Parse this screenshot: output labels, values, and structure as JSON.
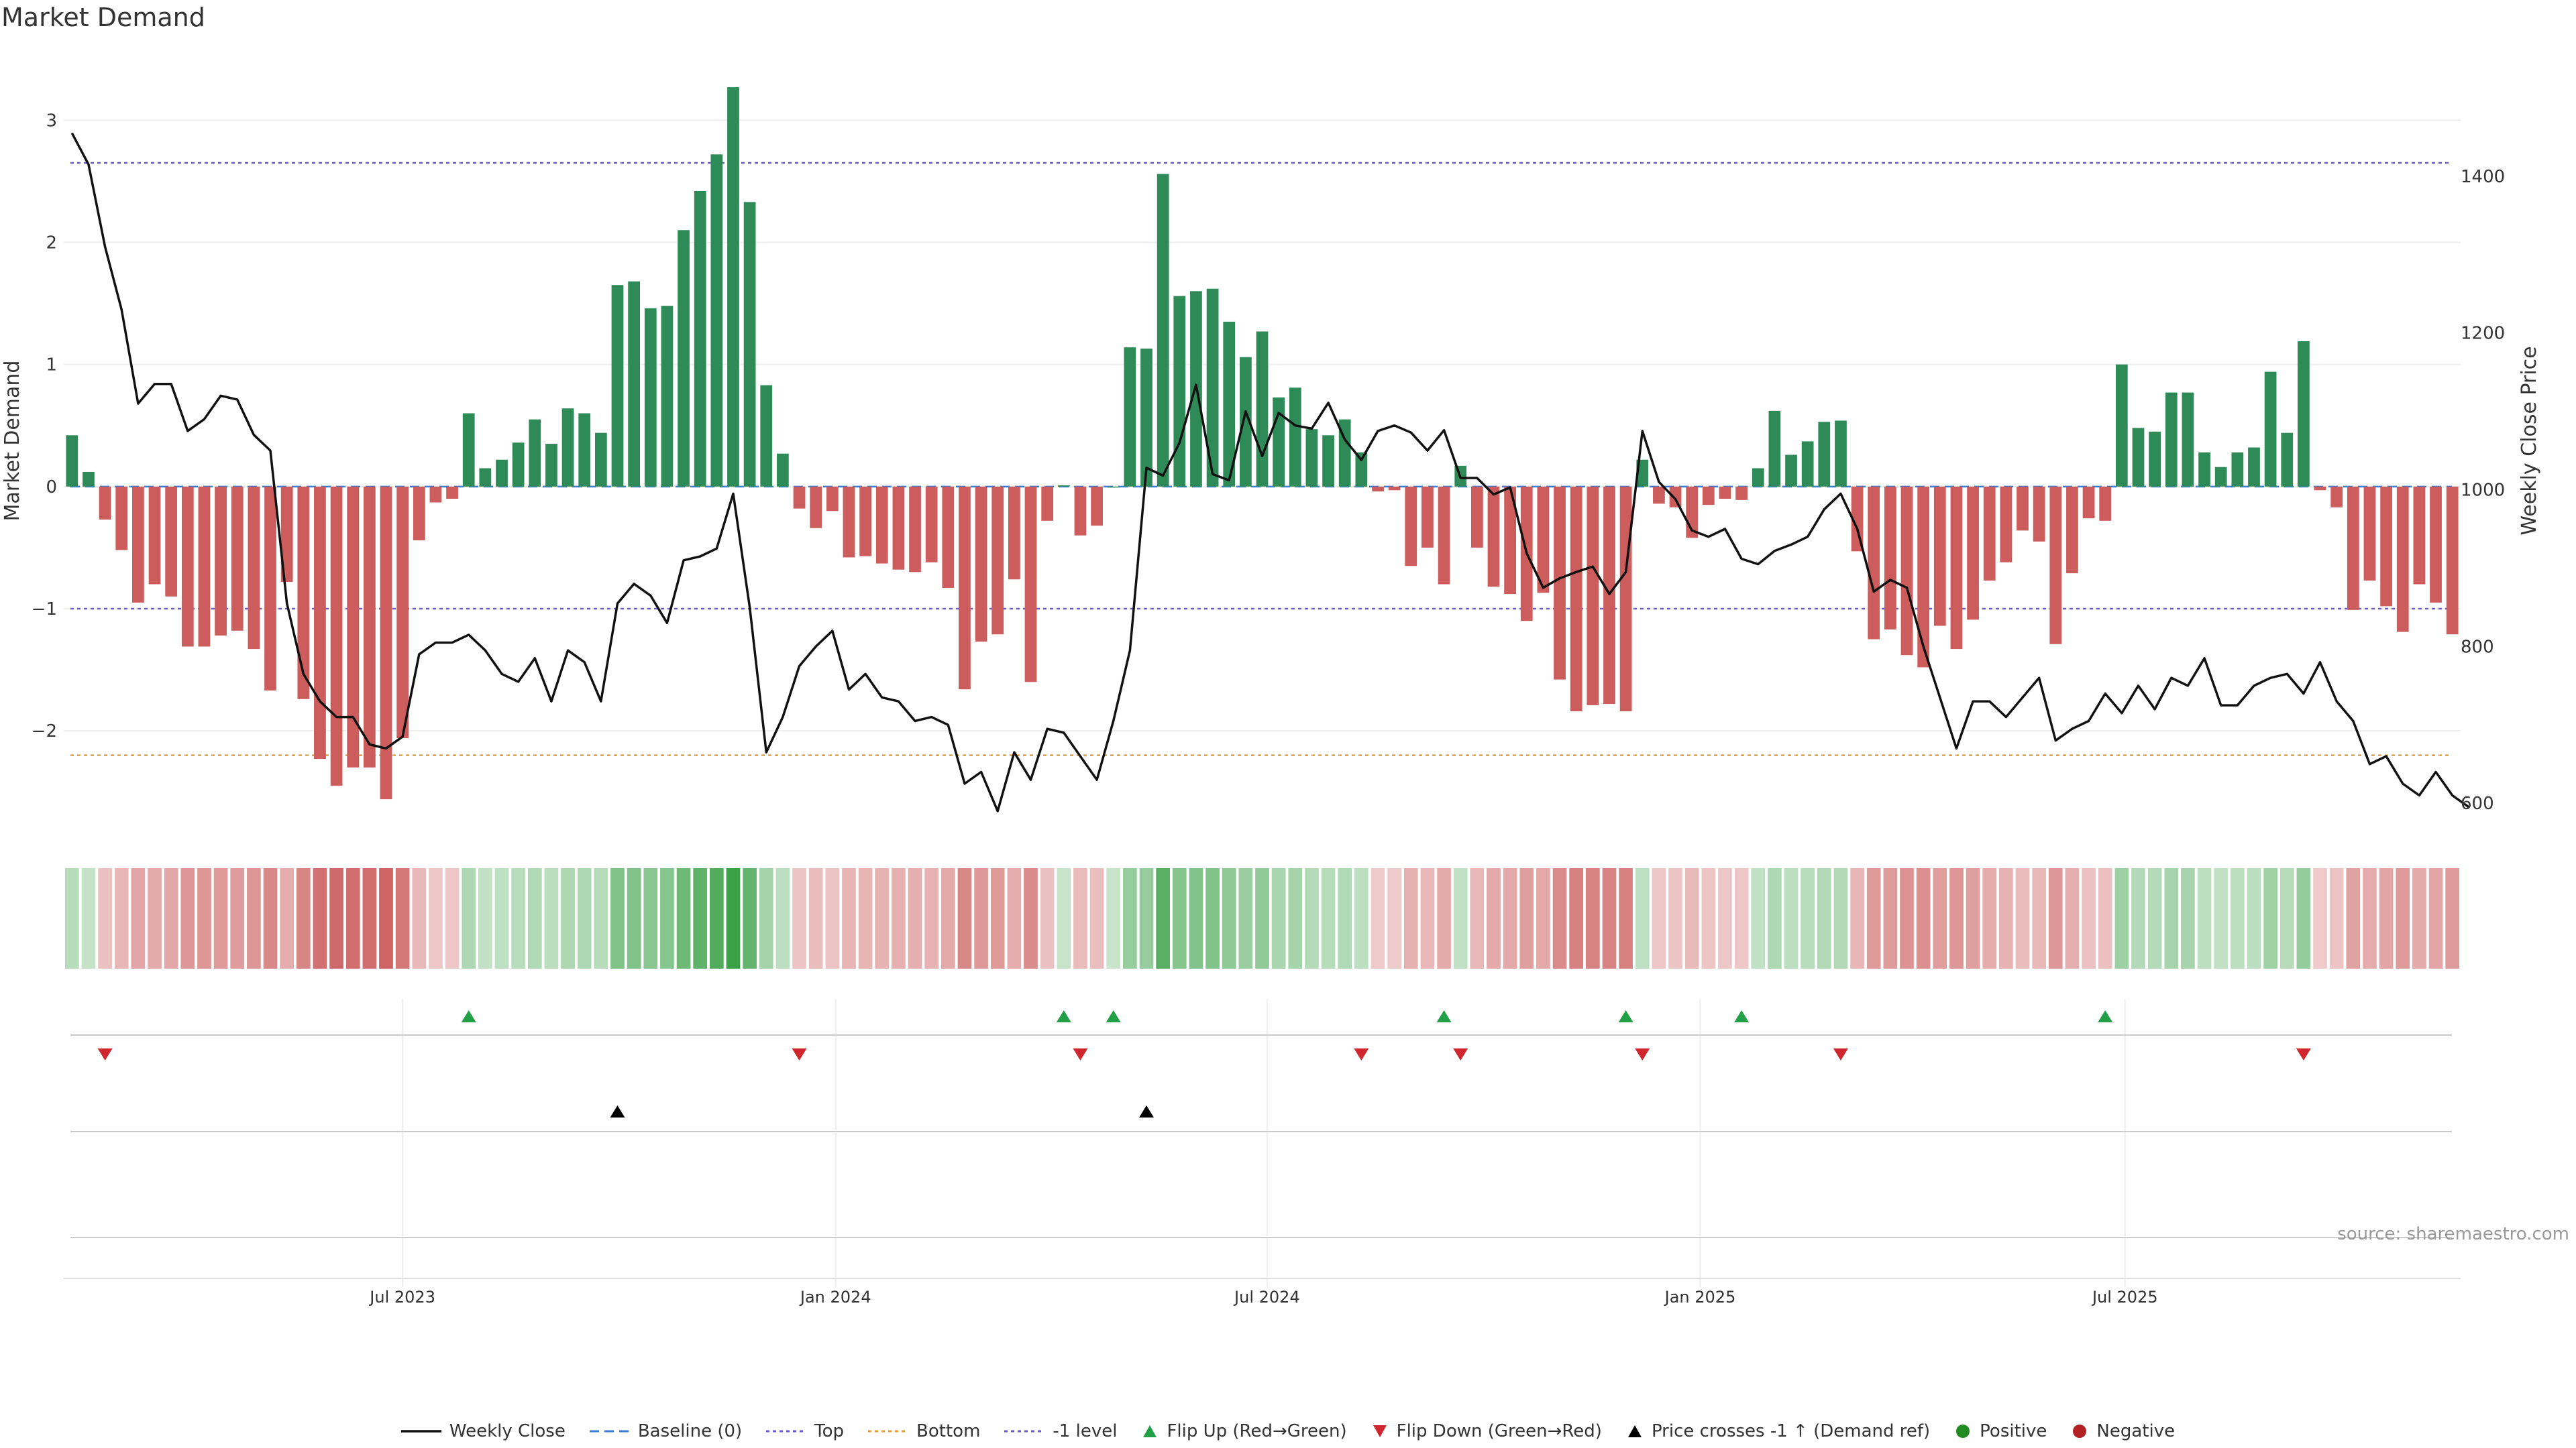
{
  "title": "Market Demand",
  "source_label": "source: sharemaestro.com",
  "colors": {
    "positive_bar": "#2e8b57",
    "negative_bar": "#cd5c5c",
    "price_line": "#111111",
    "top_line": "#6a5acd",
    "bottom_line": "#e0a040",
    "neg1_line": "#6a5acd",
    "baseline": "#3a7bd5",
    "flip_up": "#22a048",
    "flip_down": "#d0262e",
    "cross": "#000000",
    "positive_dot": "#228b22",
    "negative_dot": "#b22222",
    "grid": "#eeeeee"
  },
  "legend": [
    {
      "key": "weekly_close",
      "label": "Weekly Close",
      "style": "solid-line",
      "color": "#111111"
    },
    {
      "key": "baseline",
      "label": "Baseline (0)",
      "style": "dashed-line",
      "color": "#3a7bd5"
    },
    {
      "key": "top",
      "label": "Top",
      "style": "dotted-line",
      "color": "#6a5acd"
    },
    {
      "key": "bottom",
      "label": "Bottom",
      "style": "dotted-line",
      "color": "#e0a040"
    },
    {
      "key": "neg1",
      "label": "-1 level",
      "style": "dotted-line",
      "color": "#6a5acd"
    },
    {
      "key": "flip_up",
      "label": "Flip Up (Red→Green)",
      "style": "triangle-up",
      "color": "#22a048"
    },
    {
      "key": "flip_down",
      "label": "Flip Down (Green→Red)",
      "style": "triangle-down",
      "color": "#d0262e"
    },
    {
      "key": "cross",
      "label": "Price crosses -1 ↑ (Demand ref)",
      "style": "triangle-up",
      "color": "#000000"
    },
    {
      "key": "positive",
      "label": "Positive",
      "style": "dot",
      "color": "#228b22"
    },
    {
      "key": "negative",
      "label": "Negative",
      "style": "dot",
      "color": "#b22222"
    }
  ],
  "chart_data": {
    "type": "bar",
    "ylabel_left": "Market Demand",
    "ylabel_right": "Weekly Close Price",
    "left_ylim": [
      -2.85,
      3.6
    ],
    "left_ticks": [
      3,
      2,
      1,
      0,
      -1,
      -2
    ],
    "left_tick_labels": [
      "3",
      "2",
      "1",
      "0",
      "−1",
      "−2"
    ],
    "right_ylim": [
      560,
      1565
    ],
    "right_ticks": [
      1400,
      1200,
      1000,
      800,
      600
    ],
    "right_tick_labels": [
      "1400",
      "1200",
      "1000",
      "800",
      "600"
    ],
    "levels": {
      "top": 2.65,
      "bottom": -2.2,
      "neg1": -1.0,
      "baseline": 0
    },
    "x_tick_labels": [
      "Jul 2023",
      "Jan 2024",
      "Jul 2024",
      "Jan 2025",
      "Jul 2025"
    ],
    "x_tick_indices": [
      20.5,
      46.7,
      72.8,
      99.0,
      124.7
    ],
    "demand": [
      0.42,
      0.12,
      -0.27,
      -0.52,
      -0.95,
      -0.8,
      -0.9,
      -1.31,
      -1.31,
      -1.22,
      -1.18,
      -1.33,
      -1.67,
      -0.78,
      -1.74,
      -2.23,
      -2.45,
      -2.3,
      -2.3,
      -2.56,
      -2.06,
      -0.44,
      -0.13,
      -0.1,
      0.6,
      0.15,
      0.22,
      0.36,
      0.55,
      0.35,
      0.64,
      0.6,
      0.44,
      1.65,
      1.68,
      1.46,
      1.48,
      2.1,
      2.42,
      2.72,
      3.27,
      2.33,
      0.83,
      0.27,
      -0.18,
      -0.34,
      -0.2,
      -0.58,
      -0.57,
      -0.63,
      -0.68,
      -0.7,
      -0.62,
      -0.83,
      -1.66,
      -1.27,
      -1.21,
      -0.76,
      -1.6,
      -0.28,
      0.01,
      -0.4,
      -0.32,
      0.0,
      1.14,
      1.13,
      2.56,
      1.56,
      1.6,
      1.62,
      1.35,
      1.06,
      1.27,
      0.73,
      0.81,
      0.47,
      0.42,
      0.55,
      0.28,
      -0.04,
      -0.03,
      -0.65,
      -0.5,
      -0.8,
      0.17,
      -0.5,
      -0.82,
      -0.88,
      -1.1,
      -0.87,
      -1.58,
      -1.84,
      -1.79,
      -1.78,
      -1.84,
      0.22,
      -0.14,
      -0.17,
      -0.42,
      -0.15,
      -0.1,
      -0.11,
      0.15,
      0.62,
      0.26,
      0.37,
      0.53,
      0.54,
      -0.53,
      -1.25,
      -1.17,
      -1.38,
      -1.48,
      -1.14,
      -1.33,
      -1.09,
      -0.77,
      -0.62,
      -0.36,
      -0.45,
      -1.29,
      -0.71,
      -0.26,
      -0.28,
      1.0,
      0.48,
      0.45,
      0.77,
      0.77,
      0.28,
      0.16,
      0.28,
      0.32,
      0.94,
      0.44,
      1.19,
      -0.03,
      -0.17,
      -1.01,
      -0.77,
      -0.98,
      -1.19,
      -0.8,
      -0.95,
      -1.21
    ],
    "weekly_close": [
      1455,
      1415,
      1310,
      1230,
      1110,
      1135,
      1135,
      1075,
      1090,
      1120,
      1115,
      1070,
      1050,
      855,
      765,
      730,
      710,
      710,
      675,
      670,
      685,
      790,
      805,
      805,
      815,
      795,
      765,
      755,
      785,
      730,
      795,
      780,
      730,
      855,
      880,
      865,
      830,
      910,
      915,
      925,
      995,
      850,
      665,
      710,
      775,
      800,
      820,
      745,
      765,
      735,
      730,
      705,
      710,
      700,
      625,
      640,
      590,
      665,
      630,
      695,
      690,
      660,
      630,
      705,
      795,
      1028,
      1018,
      1060,
      1134,
      1020,
      1012,
      1100,
      1043,
      1098,
      1082,
      1078,
      1111,
      1064,
      1038,
      1075,
      1082,
      1073,
      1050,
      1076,
      1015,
      1015,
      994,
      1003,
      919,
      875,
      887,
      895,
      902,
      867,
      895,
      1075,
      1010,
      988,
      948,
      940,
      950,
      912,
      905,
      922,
      930,
      940,
      975,
      995,
      950,
      870,
      885,
      875,
      800,
      735,
      670,
      730,
      730,
      710,
      735,
      760,
      680,
      695,
      705,
      740,
      715,
      750,
      720,
      760,
      750,
      785,
      725,
      725,
      750,
      760,
      765,
      740,
      780,
      730,
      705,
      650,
      660,
      625,
      610,
      640,
      610,
      595
    ],
    "flip_up_indices": [
      24,
      60,
      63,
      83,
      94,
      101,
      123
    ],
    "flip_down_indices": [
      2,
      44,
      61,
      78,
      84,
      95,
      107,
      135
    ],
    "cross_up_indices": [
      33,
      65
    ]
  }
}
